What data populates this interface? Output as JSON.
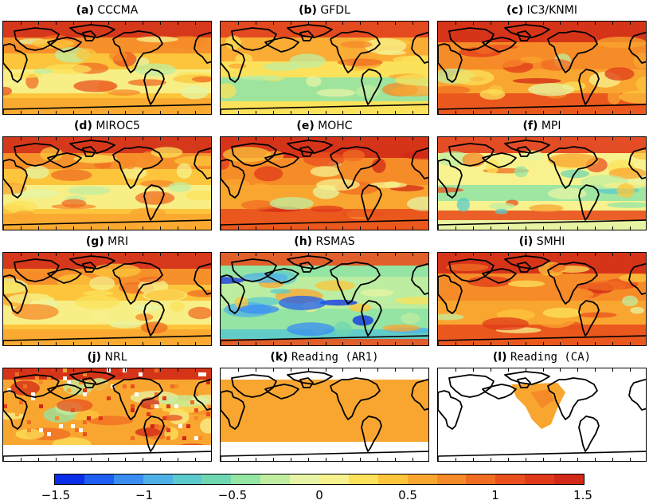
{
  "panels": [
    {
      "letter": "(a)",
      "name": "CCCMA",
      "style": "warm"
    },
    {
      "letter": "(b)",
      "name": "GFDL",
      "style": "cool-south"
    },
    {
      "letter": "(c)",
      "name": "IC3/KNMI",
      "style": "hot"
    },
    {
      "letter": "(d)",
      "name": "MIROC5",
      "style": "warm"
    },
    {
      "letter": "(e)",
      "name": "MOHC",
      "style": "hot"
    },
    {
      "letter": "(f)",
      "name": "MPI",
      "style": "mixed"
    },
    {
      "letter": "(g)",
      "name": "MRI",
      "style": "warm"
    },
    {
      "letter": "(h)",
      "name": "RSMAS",
      "style": "cool"
    },
    {
      "letter": "(i)",
      "name": "SMHI",
      "style": "hot"
    },
    {
      "letter": "(j)",
      "name": "NRL",
      "style": "patchy"
    },
    {
      "letter": "(k)",
      "name": "Reading (AR1)",
      "style": "partial"
    },
    {
      "letter": "(l)",
      "name": "Reading (CA)",
      "style": "atlantic"
    }
  ],
  "colorbar": {
    "min": -1.5,
    "max": 1.5,
    "colors": [
      "#0b2ee8",
      "#1e5ef0",
      "#3a8ef2",
      "#4fb0e8",
      "#5cc9cc",
      "#6fd7b0",
      "#94e4a4",
      "#c0eda0",
      "#e6f4a4",
      "#f7f28e",
      "#fbe25a",
      "#fcc53c",
      "#f9a630",
      "#f58a28",
      "#f06c22",
      "#e9501d",
      "#e03a1a",
      "#d22817"
    ],
    "ticks": [
      {
        "value": -1.5,
        "label": "−1.5"
      },
      {
        "value": -1,
        "label": "−1"
      },
      {
        "value": -0.5,
        "label": "−0.5"
      },
      {
        "value": 0,
        "label": "0"
      },
      {
        "value": 0.5,
        "label": "0.5"
      },
      {
        "value": 1,
        "label": "1"
      },
      {
        "value": 1.5,
        "label": "1.5"
      }
    ]
  }
}
